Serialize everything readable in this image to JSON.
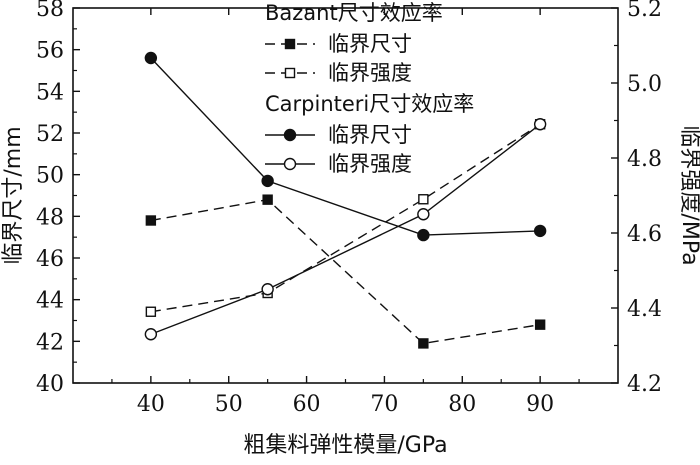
{
  "chart_data": {
    "type": "line",
    "xlabel": "粗集料弹性模量/GPa",
    "ylabel_left": "临界尺寸/mm",
    "ylabel_right": "临界强度/MPa",
    "x": [
      40,
      55,
      75,
      90
    ],
    "xlim": [
      30,
      100
    ],
    "ylim_left": [
      40,
      58
    ],
    "ylim_right": [
      4.2,
      5.2
    ],
    "x_ticks": [
      "40",
      "50",
      "60",
      "70",
      "80",
      "90"
    ],
    "y_left_ticks": [
      "40",
      "42",
      "44",
      "46",
      "48",
      "50",
      "52",
      "54",
      "56",
      "58"
    ],
    "y_right_ticks": [
      "4.2",
      "4.4",
      "4.6",
      "4.8",
      "5.0",
      "5.2"
    ],
    "legend_groups": [
      {
        "title": "Bazant尺寸效应率",
        "series": [
          {
            "name": "临界尺寸",
            "axis": "left",
            "marker": "square-filled",
            "line": "dashed",
            "values": [
              47.8,
              48.8,
              41.9,
              42.8
            ]
          },
          {
            "name": "临界强度",
            "axis": "right",
            "marker": "square-open",
            "line": "dashed",
            "values": [
              4.39,
              4.44,
              4.69,
              4.89
            ]
          }
        ]
      },
      {
        "title": "Carpinteri尺寸效应率",
        "series": [
          {
            "name": "临界尺寸",
            "axis": "left",
            "marker": "circle-filled",
            "line": "solid",
            "values": [
              55.6,
              49.7,
              47.1,
              47.3
            ]
          },
          {
            "name": "临界强度",
            "axis": "right",
            "marker": "circle-open",
            "line": "solid",
            "values": [
              4.33,
              4.45,
              4.65,
              4.89
            ]
          }
        ]
      }
    ],
    "grid": false,
    "legend_position": "top-right"
  }
}
